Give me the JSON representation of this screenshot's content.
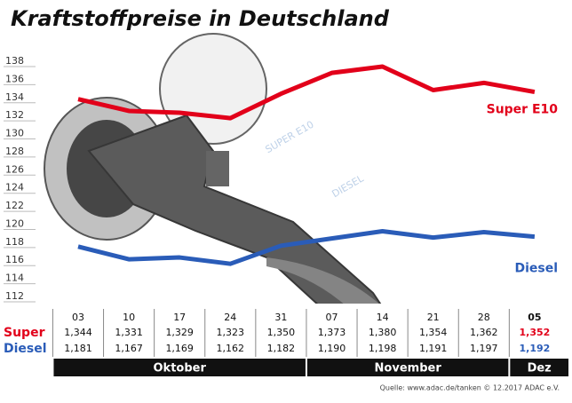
{
  "chart_data": {
    "type": "line",
    "title": "Kraftstoffpreise in Deutschland",
    "groups": [
      {
        "name": "Oktober",
        "categories": [
          "03",
          "10",
          "17",
          "24",
          "31"
        ]
      },
      {
        "name": "November",
        "categories": [
          "07",
          "14",
          "21",
          "28"
        ]
      },
      {
        "name": "Dez",
        "categories": [
          "05"
        ]
      }
    ],
    "series": [
      {
        "name": "Super E10",
        "row_label": "Super",
        "color": "#e2001a",
        "values": [
          134.4,
          133.1,
          132.9,
          132.3,
          135.0,
          137.3,
          138.0,
          135.4,
          136.2,
          135.2
        ],
        "value_labels": [
          "1,344",
          "1,331",
          "1,329",
          "1,323",
          "1,350",
          "1,373",
          "1,380",
          "1,354",
          "1,362",
          "1,352"
        ]
      },
      {
        "name": "Diesel",
        "row_label": "Diesel",
        "color": "#2a5cb8",
        "values": [
          118.1,
          116.7,
          116.9,
          116.2,
          118.2,
          119.0,
          119.8,
          119.1,
          119.7,
          119.2
        ],
        "value_labels": [
          "1,181",
          "1,167",
          "1,169",
          "1,162",
          "1,182",
          "1,190",
          "1,198",
          "1,191",
          "1,197",
          "1,192"
        ]
      }
    ],
    "ylim": [
      112,
      138
    ],
    "yticks": [
      112,
      114,
      116,
      118,
      120,
      122,
      124,
      126,
      128,
      130,
      132,
      134,
      136,
      138
    ],
    "grid": true,
    "illustration_labels": [
      "SUPER E10",
      "DIESEL"
    ],
    "source": "Quelle: www.adac.de/tanken  © 12.2017  ADAC e.V."
  }
}
